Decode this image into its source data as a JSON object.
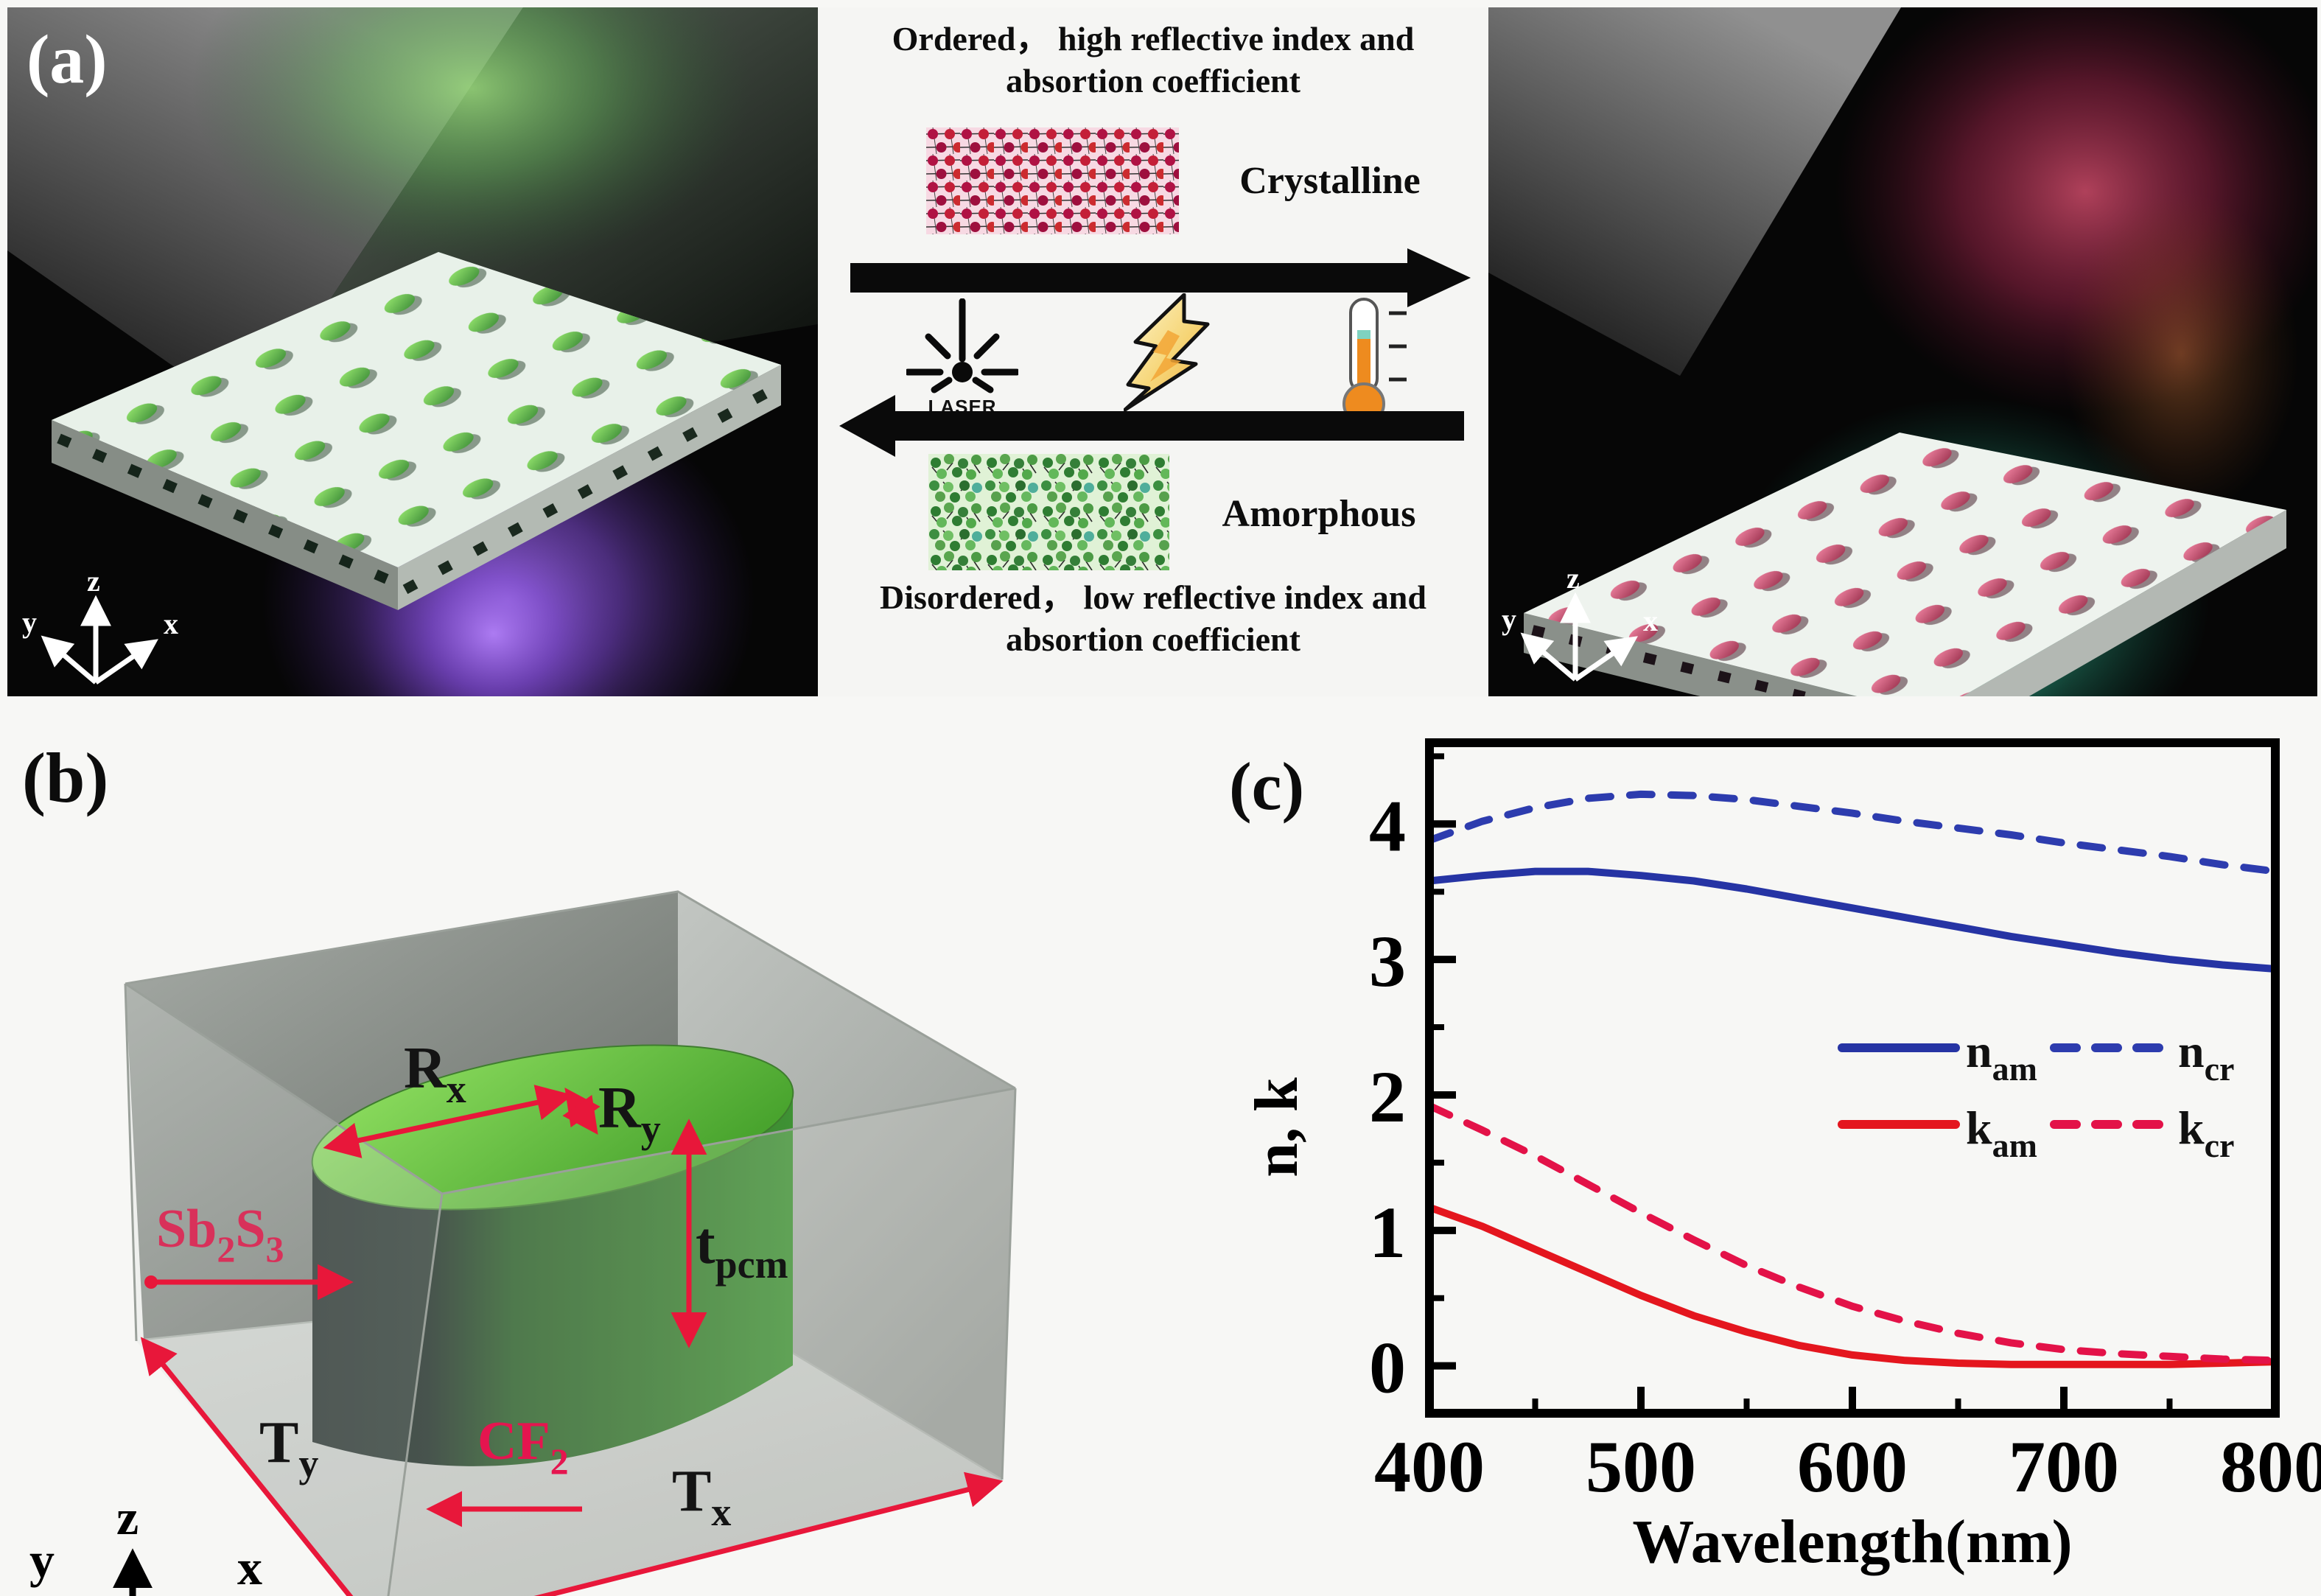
{
  "figure": {
    "panel_a_label": "(a)",
    "panel_b_label": "(b)",
    "panel_c_label": "(c)"
  },
  "colors": {
    "annotation_red": "#e8173a",
    "crystalline_red": "#b01244",
    "amorphous_green": "#3e8f3a",
    "curve_blue": "#2634a4",
    "curve_red_solid": "#e4161e",
    "curve_red_dashed": "#e31248"
  },
  "phase_diagram": {
    "top_caption_line1": "Ordered， high reflective index and",
    "top_caption_line2": "absortion coefficient",
    "crystalline_label": "Crystalline",
    "laser_label": "LASER",
    "amorphous_label": "Amorphous",
    "bottom_caption_line1": "Disordered， low reflective index and",
    "bottom_caption_line2": "absortion coefficient"
  },
  "scene_axes": {
    "x": "x",
    "y": "y",
    "z": "z"
  },
  "panel_b": {
    "material_pcm": {
      "b1": "Sb",
      "s1": "2",
      "b2": "S",
      "s2": "3"
    },
    "material_matrix": {
      "b1": "CF",
      "s1": "2"
    },
    "dim_rx": {
      "b": "R",
      "s": "x"
    },
    "dim_ry": {
      "b": "R",
      "s": "y"
    },
    "dim_t": {
      "b": "t",
      "s": "pcm"
    },
    "dim_ty": {
      "b": "T",
      "s": "y"
    },
    "dim_tx": {
      "b": "T",
      "s": "x"
    }
  },
  "chart_data": {
    "type": "line",
    "xlabel": "Wavelength(nm)",
    "ylabel": "n, k",
    "xlim": [
      400,
      800
    ],
    "ylim": [
      -0.35,
      4.6
    ],
    "x_ticks": [
      400,
      500,
      600,
      700,
      800
    ],
    "x_minor_ticks": [
      450,
      550,
      650,
      750
    ],
    "y_ticks": [
      0,
      1,
      2,
      3,
      4
    ],
    "y_minor_ticks": [
      0.5,
      1.5,
      2.5,
      3.5,
      4.5
    ],
    "grid": false,
    "legend_position": "center-right",
    "x": [
      400,
      425,
      450,
      475,
      500,
      525,
      550,
      575,
      600,
      625,
      650,
      675,
      700,
      725,
      750,
      775,
      800
    ],
    "series": [
      {
        "name": "n_am",
        "label_base": "n",
        "label_sub": "am",
        "style": "solid",
        "color": "#2634a4",
        "values": [
          3.58,
          3.62,
          3.65,
          3.65,
          3.62,
          3.58,
          3.52,
          3.45,
          3.38,
          3.31,
          3.24,
          3.17,
          3.11,
          3.05,
          3.0,
          2.96,
          2.93
        ]
      },
      {
        "name": "n_cr",
        "label_base": "n",
        "label_sub": "cr",
        "style": "dashed",
        "color": "#2d3cae",
        "values": [
          3.88,
          4.02,
          4.12,
          4.19,
          4.22,
          4.21,
          4.18,
          4.13,
          4.08,
          4.02,
          3.97,
          3.92,
          3.86,
          3.81,
          3.76,
          3.7,
          3.65
        ]
      },
      {
        "name": "k_am",
        "label_base": "k",
        "label_sub": "am",
        "style": "solid",
        "color": "#e4161e",
        "values": [
          1.17,
          1.03,
          0.86,
          0.69,
          0.52,
          0.37,
          0.25,
          0.15,
          0.08,
          0.04,
          0.02,
          0.01,
          0.01,
          0.01,
          0.01,
          0.02,
          0.03
        ]
      },
      {
        "name": "k_cr",
        "label_base": "k",
        "label_sub": "cr",
        "style": "dashed",
        "color": "#e31248",
        "values": [
          1.92,
          1.74,
          1.55,
          1.34,
          1.13,
          0.93,
          0.74,
          0.58,
          0.44,
          0.33,
          0.24,
          0.17,
          0.12,
          0.09,
          0.07,
          0.05,
          0.04
        ]
      }
    ]
  }
}
